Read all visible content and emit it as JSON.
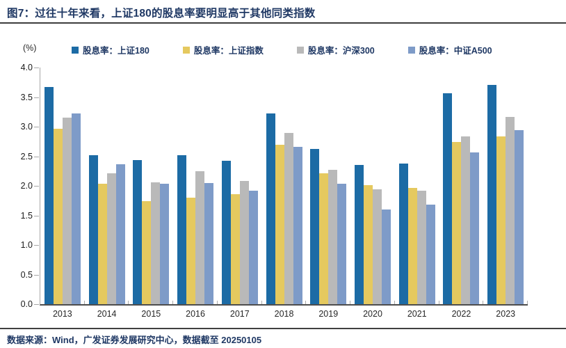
{
  "header": {
    "title": "图7：过往十年来看，上证180的股息率要明显高于其他同类指数"
  },
  "chart": {
    "unit_label": "(%)"
  },
  "chart_data": {
    "type": "bar",
    "title": "过往十年来看，上证180的股息率要明显高于其他同类指数",
    "categories": [
      "2013",
      "2014",
      "2015",
      "2016",
      "2017",
      "2018",
      "2019",
      "2020",
      "2021",
      "2022",
      "2023"
    ],
    "series": [
      {
        "name": "股息率：上证180",
        "color": "#1c6ba5",
        "values": [
          3.67,
          2.52,
          2.44,
          2.52,
          2.42,
          3.22,
          2.62,
          2.35,
          2.38,
          3.56,
          3.71
        ]
      },
      {
        "name": "股息率：上证指数",
        "color": "#e5c95f",
        "values": [
          2.97,
          2.04,
          1.74,
          1.8,
          1.86,
          2.7,
          2.21,
          2.01,
          1.97,
          2.74,
          2.84
        ]
      },
      {
        "name": "股息率：沪深300",
        "color": "#b9b9b9",
        "values": [
          3.15,
          2.21,
          2.06,
          2.25,
          2.08,
          2.9,
          2.27,
          1.94,
          1.92,
          2.84,
          3.16
        ]
      },
      {
        "name": "股息率：中证A500",
        "color": "#7e9bc8",
        "values": [
          3.22,
          2.37,
          2.03,
          2.05,
          1.92,
          2.66,
          2.03,
          1.6,
          1.68,
          2.57,
          2.94
        ]
      }
    ],
    "xlabel": "",
    "ylabel": "(%)",
    "ylim": [
      0,
      4
    ],
    "ytick_step": 0.5,
    "yticks": [
      "4.0",
      "3.5",
      "3.0",
      "2.5",
      "2.0",
      "1.5",
      "1.0",
      "0.5",
      "0.0"
    ],
    "legend_position": "top",
    "grid": false
  },
  "footer": {
    "source": "数据来源：Wind，广发证券发展研究中心，数据截至 20250105"
  }
}
